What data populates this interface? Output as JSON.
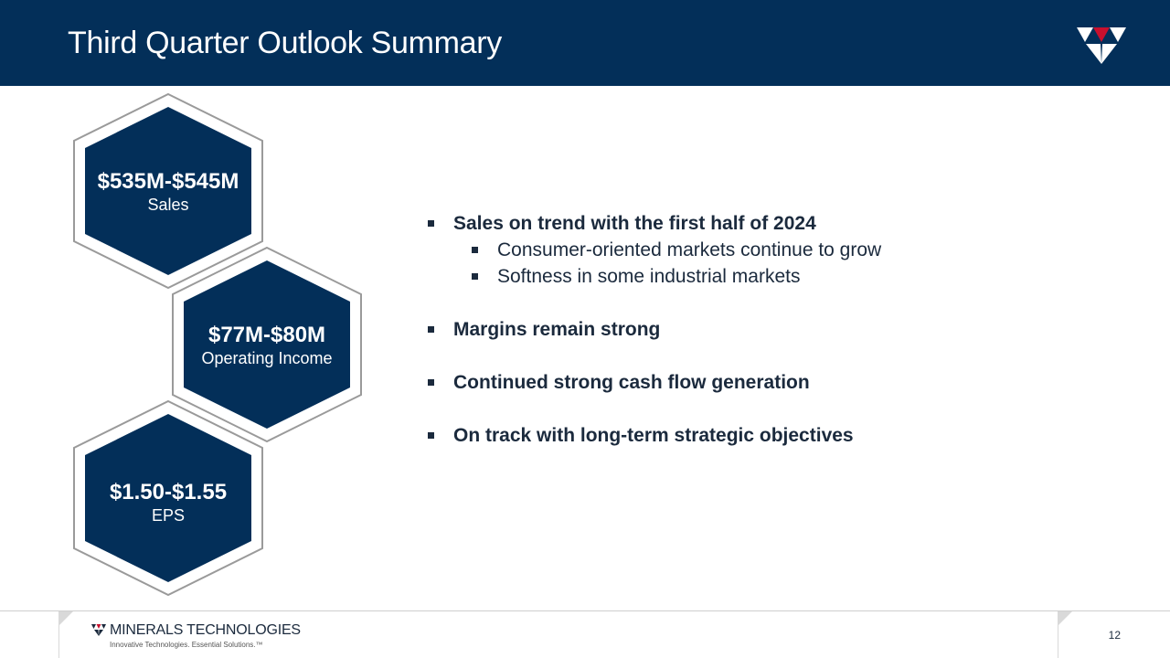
{
  "slide": {
    "title": "Third Quarter Outlook Summary",
    "page_number": "12"
  },
  "colors": {
    "header_bg": "#032f59",
    "hex_fill": "#032f59",
    "logo_red": "#c8102e"
  },
  "metrics": [
    {
      "value": "$535M-$545M",
      "label": "Sales"
    },
    {
      "value": "$77M-$80M",
      "label": "Operating Income"
    },
    {
      "value": "$1.50-$1.55",
      "label": "EPS"
    }
  ],
  "bullets": [
    {
      "text": "Sales on trend with the first half of 2024",
      "sub": [
        "Consumer-oriented markets continue to grow",
        "Softness in some industrial markets"
      ]
    },
    {
      "text": "Margins remain strong",
      "sub": []
    },
    {
      "text": "Continued strong cash flow generation",
      "sub": []
    },
    {
      "text": "On track with long-term strategic objectives",
      "sub": []
    }
  ],
  "footer": {
    "company": "MINERALS TECHNOLOGIES",
    "tagline": "Innovative Technologies. Essential Solutions.™"
  }
}
